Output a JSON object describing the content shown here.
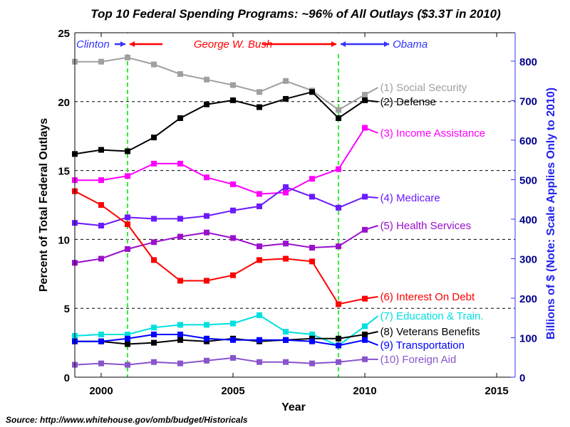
{
  "chart_data": {
    "type": "line",
    "title": "Top 10 Federal Spending Programs: ~96% of All Outlays ($3.3T in 2010)",
    "xlabel": "Year",
    "ylabel": "Percent of Total Federal Outlays",
    "ylabel_right": "Billions of $ (Note: Scale Applies Only to 2010)",
    "source": "Source: http://www.whitehouse.gov/omb/budget/Historicals",
    "xlim": [
      1999,
      2015.7
    ],
    "ylim": [
      0,
      25
    ],
    "ylim_right": [
      0,
      872
    ],
    "xticks": [
      "2000",
      "2005",
      "2010",
      "2015"
    ],
    "yticks": [
      "0",
      "5",
      "10",
      "15",
      "20",
      "25"
    ],
    "yticks_right": [
      "0",
      "100",
      "200",
      "300",
      "400",
      "500",
      "600",
      "700",
      "800"
    ],
    "grid": "horizontal dashed at 5, 10, 15, 20",
    "eras": [
      {
        "label": "Clinton",
        "color": "#3333ff",
        "to": 2001
      },
      {
        "label": "George W. Bush",
        "color": "#ff0000",
        "from": 2001,
        "to": 2009
      },
      {
        "label": "Obama",
        "color": "#3333ff",
        "from": 2009,
        "to": 2011
      }
    ],
    "era_line_color": "#33ee33",
    "x": [
      1999,
      2000,
      2001,
      2002,
      2003,
      2004,
      2005,
      2006,
      2007,
      2008,
      2009,
      2010
    ],
    "series": [
      {
        "name": "(1) Social Security",
        "color": "#a0a0a0",
        "values": [
          22.9,
          22.9,
          23.2,
          22.7,
          22.0,
          21.6,
          21.2,
          20.7,
          21.5,
          20.8,
          19.4,
          20.5
        ]
      },
      {
        "name": "(2) Defense",
        "color": "#000000",
        "values": [
          16.2,
          16.5,
          16.4,
          17.4,
          18.8,
          19.8,
          20.1,
          19.6,
          20.2,
          20.7,
          18.8,
          20.1
        ]
      },
      {
        "name": "(3) Income Assistance",
        "color": "#ff00ff",
        "values": [
          14.3,
          14.3,
          14.6,
          15.5,
          15.5,
          14.5,
          14.0,
          13.3,
          13.4,
          14.4,
          15.1,
          18.1
        ]
      },
      {
        "name": "(4) Medicare",
        "color": "#6a1aff",
        "values": [
          11.2,
          11.0,
          11.6,
          11.5,
          11.5,
          11.7,
          12.1,
          12.4,
          13.8,
          13.1,
          12.3,
          13.1
        ]
      },
      {
        "name": "(5) Health Services",
        "color": "#9a10cc",
        "values": [
          8.3,
          8.6,
          9.3,
          9.8,
          10.2,
          10.5,
          10.1,
          9.5,
          9.7,
          9.4,
          9.5,
          10.7
        ]
      },
      {
        "name": "(6) Interest On Debt",
        "color": "#ff0000",
        "values": [
          13.5,
          12.5,
          11.1,
          8.5,
          7.0,
          7.0,
          7.4,
          8.5,
          8.6,
          8.4,
          5.3,
          5.7
        ]
      },
      {
        "name": "(7) Education & Train.",
        "color": "#00e0e0",
        "values": [
          3.0,
          3.1,
          3.1,
          3.6,
          3.8,
          3.8,
          3.9,
          4.5,
          3.3,
          3.1,
          2.3,
          3.7
        ]
      },
      {
        "name": "(8) Veterans Benefits",
        "color": "#000000",
        "values": [
          2.6,
          2.6,
          2.4,
          2.5,
          2.7,
          2.6,
          2.8,
          2.6,
          2.7,
          2.8,
          2.8,
          3.1
        ]
      },
      {
        "name": "(9) Transportation",
        "color": "#0000ff",
        "values": [
          2.6,
          2.6,
          2.8,
          3.1,
          3.1,
          2.8,
          2.7,
          2.7,
          2.7,
          2.6,
          2.3,
          2.7
        ]
      },
      {
        "name": "(10) Foreign Aid",
        "color": "#8855cc",
        "values": [
          0.9,
          1.0,
          0.9,
          1.1,
          1.0,
          1.2,
          1.4,
          1.1,
          1.1,
          1.0,
          1.1,
          1.3
        ]
      }
    ]
  }
}
